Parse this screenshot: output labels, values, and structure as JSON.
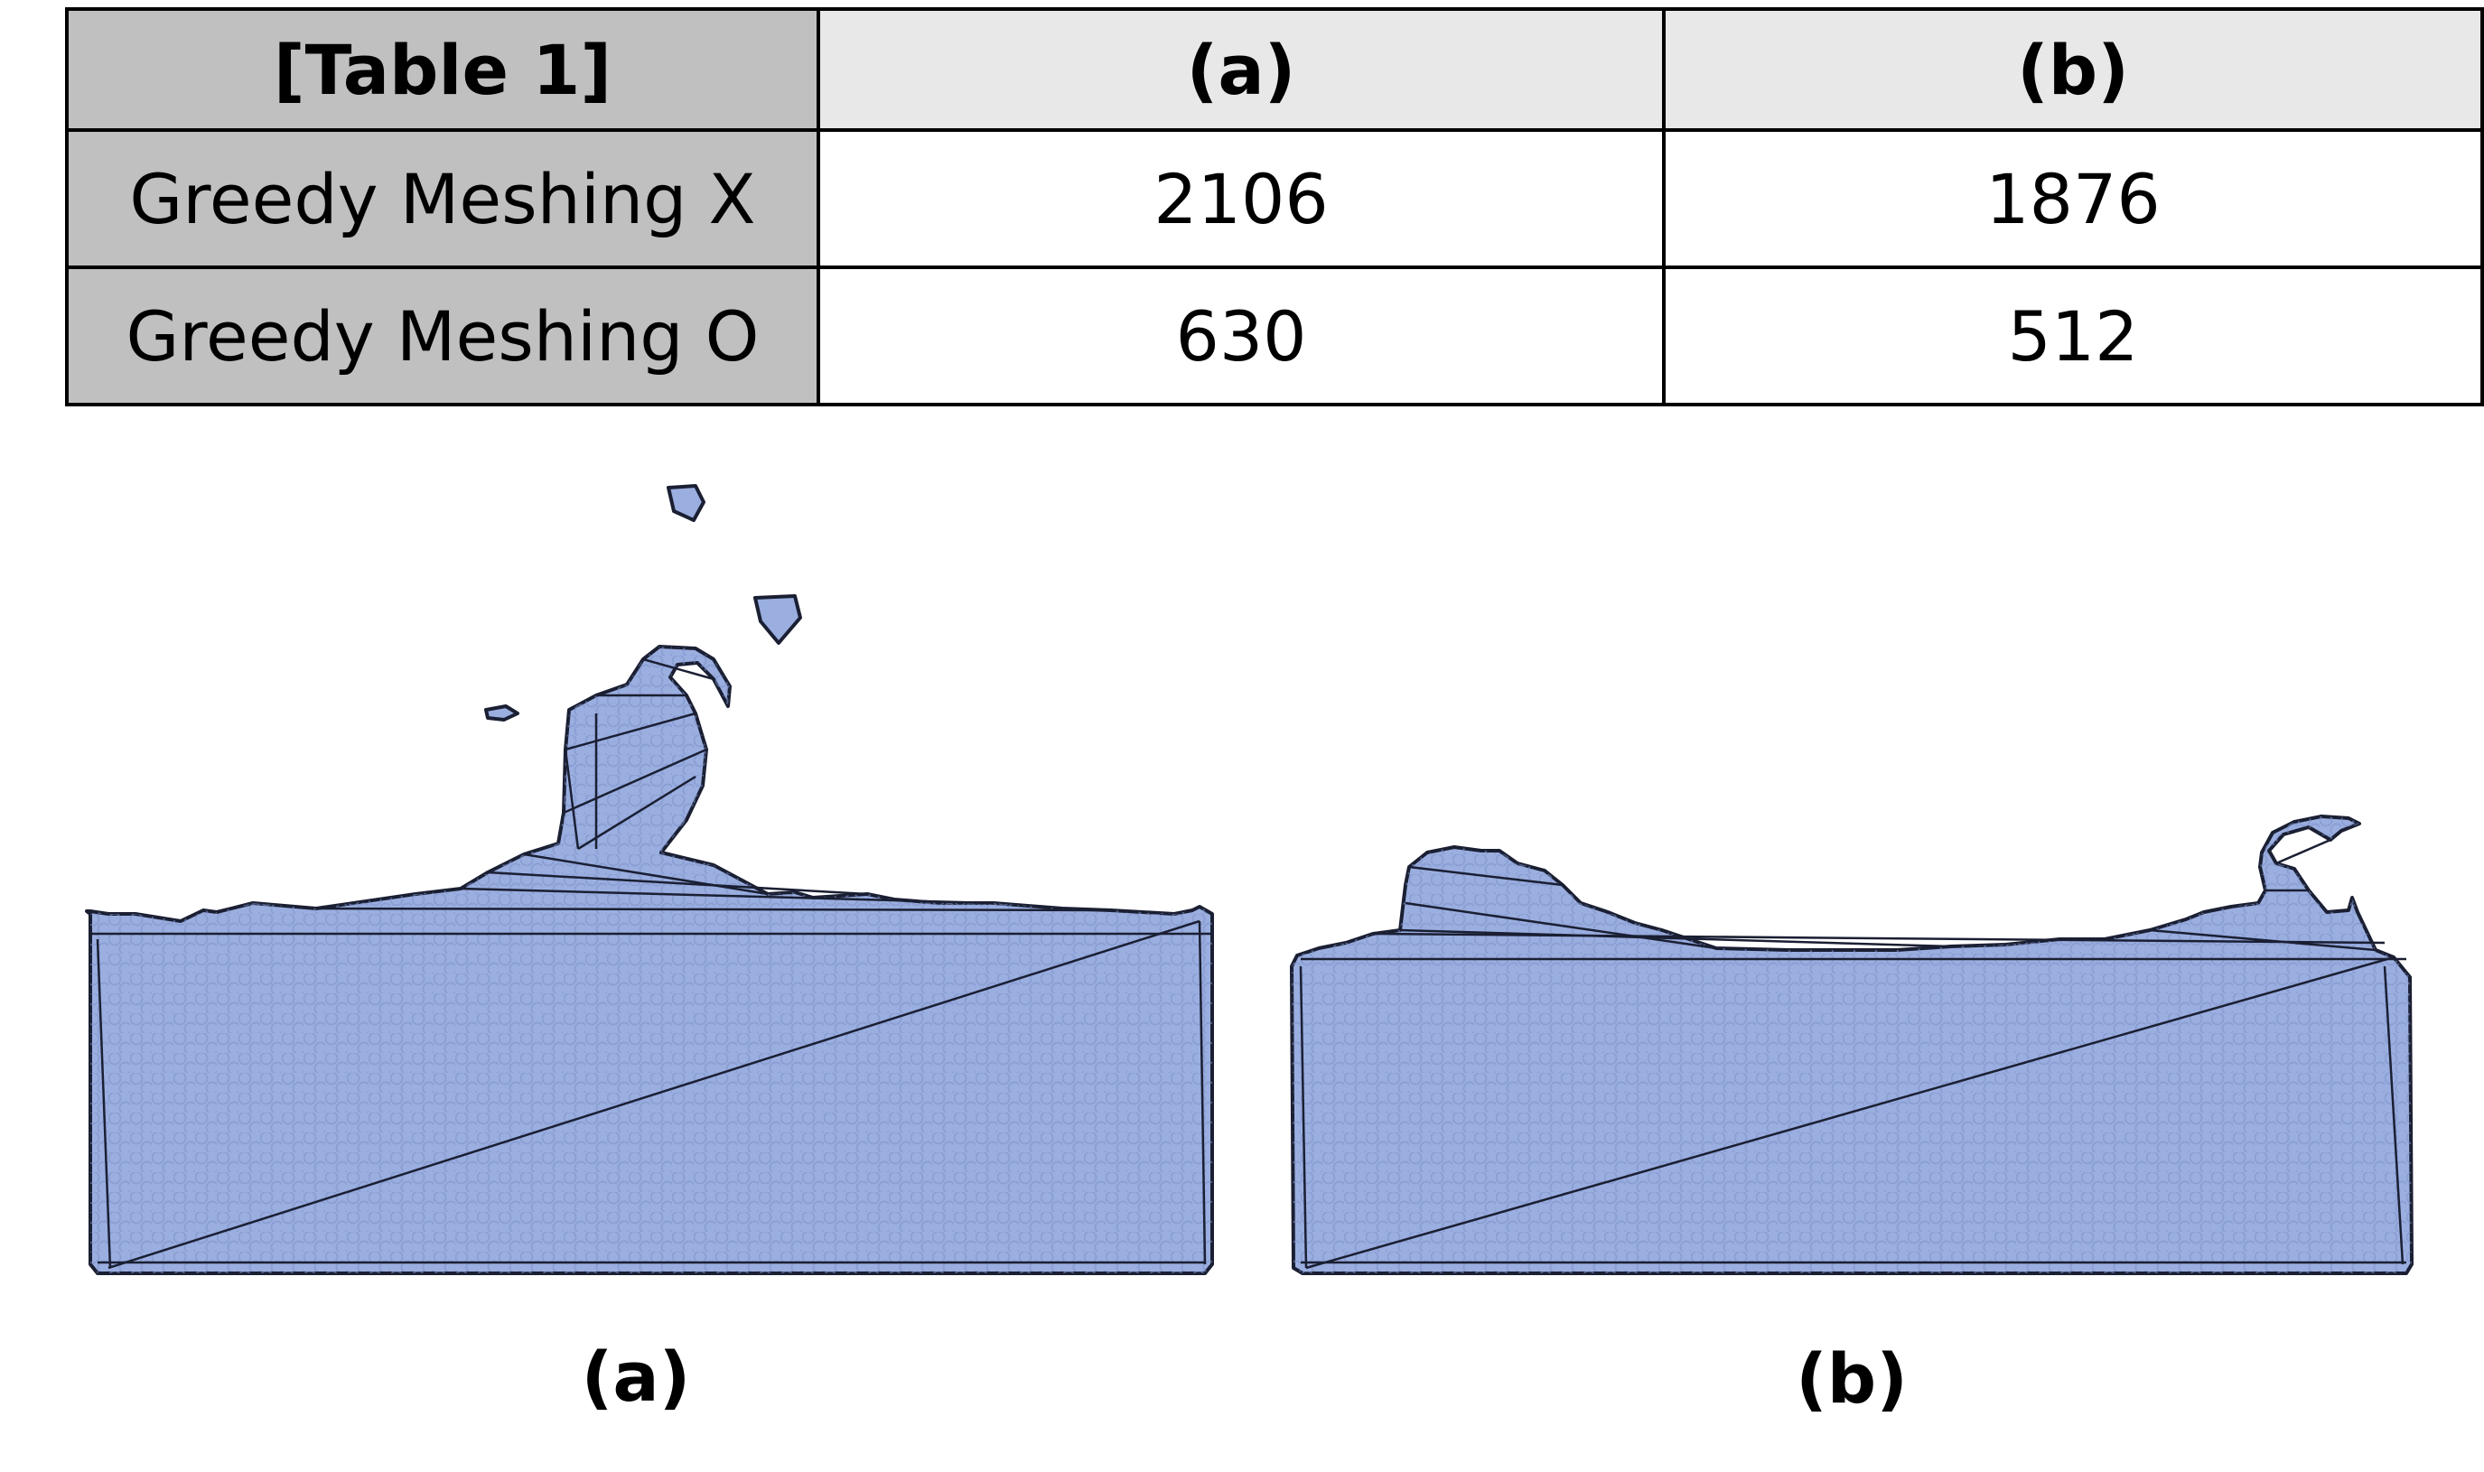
{
  "table": {
    "header": [
      "[Table 1]",
      "(a)",
      "(b)"
    ],
    "rows": [
      {
        "label": "Greedy Meshing X",
        "a": "2106",
        "b": "1876"
      },
      {
        "label": "Greedy Meshing O",
        "a": "630",
        "b": "512"
      }
    ]
  },
  "figure": {
    "panels": [
      {
        "caption": "(a)"
      },
      {
        "caption": "(b)"
      }
    ],
    "colors": {
      "fluid_fill": "#9aaee0",
      "mesh_line": "#1a1f33",
      "particle": "#7f93c9"
    }
  }
}
